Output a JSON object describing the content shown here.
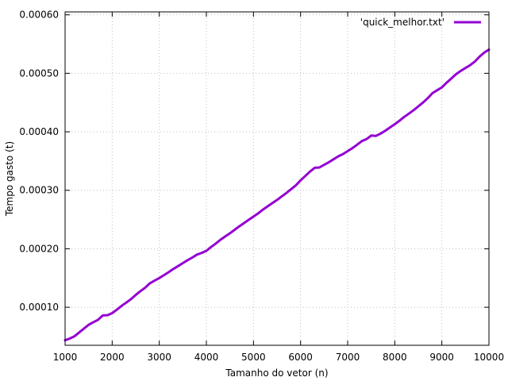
{
  "chart_data": {
    "type": "line",
    "xlabel": "Tamanho do vetor (n)",
    "ylabel": "Tempo gasto (t)",
    "xlim": [
      1000,
      10000
    ],
    "ylim": [
      3.5e-05,
      0.000605
    ],
    "grid": true,
    "legend_position": "top-right",
    "x_ticks": [
      1000,
      2000,
      3000,
      4000,
      5000,
      6000,
      7000,
      8000,
      9000,
      10000
    ],
    "x_tick_labels": [
      "1000",
      "2000",
      "3000",
      "4000",
      "5000",
      "6000",
      "7000",
      "8000",
      "9000",
      "10000"
    ],
    "y_ticks": [
      0.0001,
      0.0002,
      0.0003,
      0.0004,
      0.0005,
      0.0006
    ],
    "y_tick_labels": [
      "0.00010",
      "0.00020",
      "0.00030",
      "0.00040",
      "0.00050",
      "0.00060"
    ],
    "series": [
      {
        "name": "'quick_melhor.txt'",
        "color": "#9400d3",
        "x": [
          1000,
          1100,
          1200,
          1300,
          1400,
          1500,
          1600,
          1700,
          1800,
          1900,
          2000,
          2100,
          2200,
          2300,
          2400,
          2500,
          2600,
          2700,
          2800,
          2900,
          3000,
          3100,
          3200,
          3300,
          3400,
          3500,
          3600,
          3700,
          3800,
          3900,
          4000,
          4100,
          4200,
          4300,
          4400,
          4500,
          4600,
          4700,
          4800,
          4900,
          5000,
          5100,
          5200,
          5300,
          5400,
          5500,
          5600,
          5700,
          5800,
          5900,
          6000,
          6100,
          6200,
          6300,
          6400,
          6500,
          6600,
          6700,
          6800,
          6900,
          7000,
          7100,
          7200,
          7300,
          7400,
          7500,
          7600,
          7700,
          7800,
          7900,
          8000,
          8100,
          8200,
          8300,
          8400,
          8500,
          8600,
          8700,
          8800,
          8900,
          9000,
          9100,
          9200,
          9300,
          9400,
          9500,
          9600,
          9700,
          9800,
          9900,
          10000
        ],
        "values": [
          4.35e-05,
          4.65e-05,
          5.05e-05,
          5.7e-05,
          6.35e-05,
          7e-05,
          7.45e-05,
          7.85e-05,
          8.6e-05,
          8.65e-05,
          9e-05,
          9.6e-05,
          0.0001025,
          0.000108,
          0.000114,
          0.000121,
          0.0001275,
          0.0001335,
          0.000141,
          0.0001455,
          0.00015,
          0.000155,
          0.00016,
          0.0001655,
          0.0001705,
          0.0001755,
          0.0001805,
          0.000185,
          0.00019,
          0.000193,
          0.0001965,
          0.000203,
          0.000209,
          0.0002155,
          0.000221,
          0.0002265,
          0.0002325,
          0.0002385,
          0.000244,
          0.0002495,
          0.000255,
          0.0002605,
          0.000267,
          0.0002725,
          0.000278,
          0.0002835,
          0.0002895,
          0.0002955,
          0.000302,
          0.0003085,
          0.000317,
          0.0003245,
          0.000332,
          0.0003385,
          0.000339,
          0.0003435,
          0.000348,
          0.000353,
          0.000358,
          0.000362,
          0.000367,
          0.000372,
          0.000378,
          0.000384,
          0.0003875,
          0.0003935,
          0.000393,
          0.000397,
          0.000402,
          0.0004075,
          0.000413,
          0.000419,
          0.0004255,
          0.000431,
          0.000437,
          0.0004435,
          0.00045,
          0.0004575,
          0.000466,
          0.000471,
          0.000476,
          0.000484,
          0.000491,
          0.0004985,
          0.000504,
          0.000509,
          0.000514,
          0.00052,
          0.0005285,
          0.0005355,
          0.0005405
        ]
      }
    ]
  }
}
